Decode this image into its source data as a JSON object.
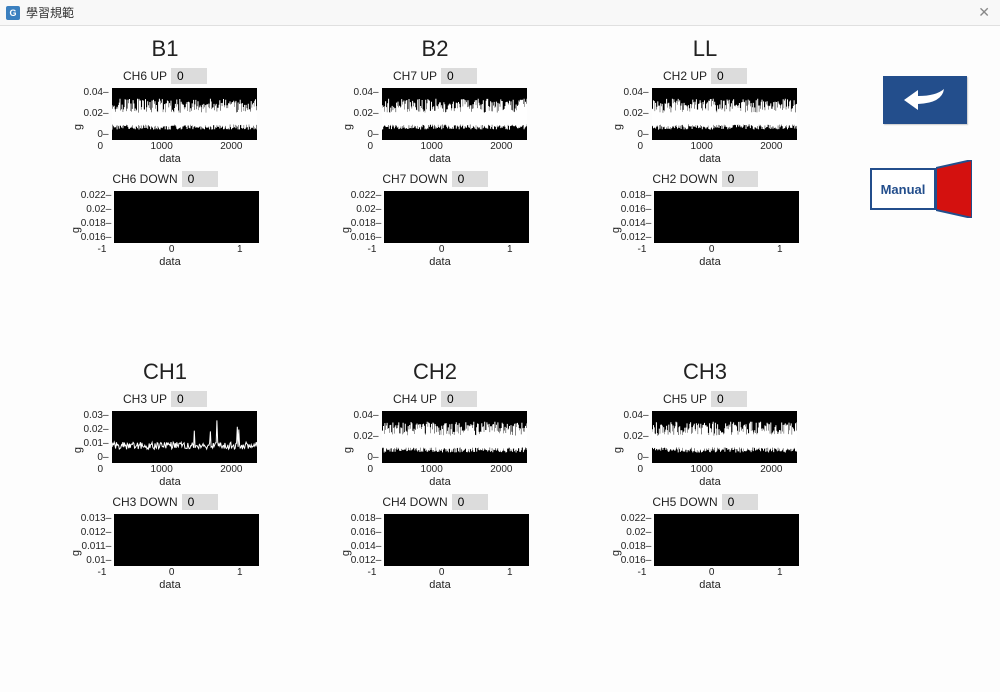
{
  "window": {
    "title": "學習規範"
  },
  "side": {
    "manual_label": "Manual"
  },
  "colors": {
    "titlebar_border": "#e0e0e0",
    "field_bg": "#dcdcdc",
    "plot_bg": "#000000",
    "signal_color": "#ffffff",
    "accent": "#234e8c",
    "manual_red": "#d4110f"
  },
  "layout": {
    "panel_count": 6,
    "chart_up": {
      "width": 145,
      "height": 52
    },
    "chart_down": {
      "width": 145,
      "height": 52
    }
  },
  "panels": [
    {
      "title": "B1",
      "up": {
        "label": "CH6 UP",
        "value": "0",
        "ylabel": "g",
        "xlabel": "data",
        "yticks": [
          "0.04",
          "0.02",
          "0"
        ],
        "xticks": [
          "0",
          "1000",
          "2000"
        ],
        "ylim": [
          0,
          0.04
        ],
        "xlim": [
          0,
          2000
        ],
        "signal": {
          "type": "noise_band",
          "baseline": 0.012,
          "amplitude": 0.018,
          "n": 200
        }
      },
      "down": {
        "label": "CH6 DOWN",
        "value": "0",
        "ylabel": "g",
        "xlabel": "data",
        "yticks": [
          "0.022",
          "0.02",
          "0.018",
          "0.016"
        ],
        "xticks": [
          "-1",
          "0",
          "1"
        ],
        "ylim": [
          0.016,
          0.022
        ],
        "xlim": [
          -1,
          1
        ],
        "signal": {
          "type": "flat_black"
        }
      }
    },
    {
      "title": "B2",
      "up": {
        "label": "CH7 UP",
        "value": "0",
        "ylabel": "g",
        "xlabel": "data",
        "yticks": [
          "0.04",
          "0.02",
          "0"
        ],
        "xticks": [
          "0",
          "1000",
          "2000"
        ],
        "ylim": [
          0,
          0.04
        ],
        "xlim": [
          0,
          2000
        ],
        "signal": {
          "type": "noise_band",
          "baseline": 0.012,
          "amplitude": 0.018,
          "n": 200
        }
      },
      "down": {
        "label": "CH7 DOWN",
        "value": "0",
        "ylabel": "g",
        "xlabel": "data",
        "yticks": [
          "0.022",
          "0.02",
          "0.018",
          "0.016"
        ],
        "xticks": [
          "-1",
          "0",
          "1"
        ],
        "ylim": [
          0.016,
          0.022
        ],
        "xlim": [
          -1,
          1
        ],
        "signal": {
          "type": "flat_black"
        }
      }
    },
    {
      "title": "LL",
      "up": {
        "label": "CH2 UP",
        "value": "0",
        "ylabel": "g",
        "xlabel": "data",
        "yticks": [
          "0.04",
          "0.02",
          "0"
        ],
        "xticks": [
          "0",
          "1000",
          "2000"
        ],
        "ylim": [
          0,
          0.04
        ],
        "xlim": [
          0,
          2000
        ],
        "signal": {
          "type": "noise_band",
          "baseline": 0.012,
          "amplitude": 0.018,
          "n": 200
        }
      },
      "down": {
        "label": "CH2 DOWN",
        "value": "0",
        "ylabel": "g",
        "xlabel": "data",
        "yticks": [
          "0.018",
          "0.016",
          "0.014",
          "0.012"
        ],
        "xticks": [
          "-1",
          "0",
          "1"
        ],
        "ylim": [
          0.012,
          0.018
        ],
        "xlim": [
          -1,
          1
        ],
        "signal": {
          "type": "flat_black"
        }
      }
    },
    {
      "title": "CH1",
      "up": {
        "label": "CH3 UP",
        "value": "0",
        "ylabel": "g",
        "xlabel": "data",
        "yticks": [
          "0.03",
          "0.02",
          "0.01",
          "0"
        ],
        "xticks": [
          "0",
          "1000",
          "2000"
        ],
        "ylim": [
          0,
          0.03
        ],
        "xlim": [
          0,
          2000
        ],
        "signal": {
          "type": "noise_line",
          "baseline": 0.01,
          "amplitude": 0.007,
          "n": 200
        }
      },
      "down": {
        "label": "CH3 DOWN",
        "value": "0",
        "ylabel": "g",
        "xlabel": "data",
        "yticks": [
          "0.013",
          "0.012",
          "0.011",
          "0.01"
        ],
        "xticks": [
          "-1",
          "0",
          "1"
        ],
        "ylim": [
          0.01,
          0.013
        ],
        "xlim": [
          -1,
          1
        ],
        "signal": {
          "type": "flat_black"
        }
      }
    },
    {
      "title": "CH2",
      "up": {
        "label": "CH4 UP",
        "value": "0",
        "ylabel": "g",
        "xlabel": "data",
        "yticks": [
          "0.04",
          "0.02",
          "0"
        ],
        "xticks": [
          "0",
          "1000",
          "2000"
        ],
        "ylim": [
          0,
          0.04
        ],
        "xlim": [
          0,
          2000
        ],
        "signal": {
          "type": "noise_band",
          "baseline": 0.012,
          "amplitude": 0.018,
          "n": 200
        }
      },
      "down": {
        "label": "CH4 DOWN",
        "value": "0",
        "ylabel": "g",
        "xlabel": "data",
        "yticks": [
          "0.018",
          "0.016",
          "0.014",
          "0.012"
        ],
        "xticks": [
          "-1",
          "0",
          "1"
        ],
        "ylim": [
          0.012,
          0.018
        ],
        "xlim": [
          -1,
          1
        ],
        "signal": {
          "type": "flat_black"
        }
      }
    },
    {
      "title": "CH3",
      "up": {
        "label": "CH5 UP",
        "value": "0",
        "ylabel": "g",
        "xlabel": "data",
        "yticks": [
          "0.04",
          "0.02",
          "0"
        ],
        "xticks": [
          "0",
          "1000",
          "2000"
        ],
        "ylim": [
          0,
          0.04
        ],
        "xlim": [
          0,
          2000
        ],
        "signal": {
          "type": "noise_band",
          "baseline": 0.012,
          "amplitude": 0.018,
          "n": 200
        }
      },
      "down": {
        "label": "CH5 DOWN",
        "value": "0",
        "ylabel": "g",
        "xlabel": "data",
        "yticks": [
          "0.022",
          "0.02",
          "0.018",
          "0.016"
        ],
        "xticks": [
          "-1",
          "0",
          "1"
        ],
        "ylim": [
          0.016,
          0.022
        ],
        "xlim": [
          -1,
          1
        ],
        "signal": {
          "type": "flat_black"
        }
      }
    }
  ]
}
